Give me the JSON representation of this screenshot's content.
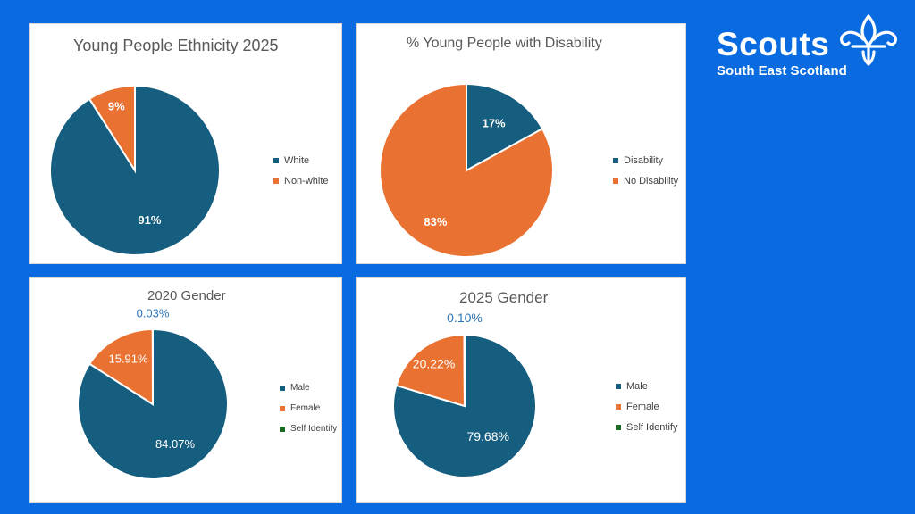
{
  "brand": {
    "name": "Scouts",
    "region": "South East Scotland",
    "icon": "fleur-de-lis-icon",
    "background": "#0a6be0"
  },
  "colors": {
    "blue": "#165e7f",
    "orange": "#e97132",
    "green": "#196b24",
    "outside_label": "#2e75b6"
  },
  "chart_data": [
    {
      "type": "pie",
      "title": "Young People Ethnicity 2025",
      "categories": [
        "White",
        "Non-white"
      ],
      "values": [
        91,
        9
      ],
      "data_labels": [
        "91%",
        "9%"
      ],
      "colors": [
        "#165e7f",
        "#e97132"
      ],
      "legend": "right"
    },
    {
      "type": "pie",
      "title": "% Young People with Disability",
      "categories": [
        "Disability",
        "No Disability"
      ],
      "values": [
        17,
        83
      ],
      "data_labels": [
        "17%",
        "83%"
      ],
      "colors": [
        "#165e7f",
        "#e97132"
      ],
      "legend": "right"
    },
    {
      "type": "pie",
      "title": "2020 Gender",
      "categories": [
        "Male",
        "Female",
        "Self Identify"
      ],
      "values": [
        84.07,
        15.91,
        0.03
      ],
      "data_labels": [
        "84.07%",
        "15.91%",
        "0.03%"
      ],
      "colors": [
        "#165e7f",
        "#e97132",
        "#196b24"
      ],
      "legend": "right"
    },
    {
      "type": "pie",
      "title": "2025 Gender",
      "categories": [
        "Male",
        "Female",
        "Self Identify"
      ],
      "values": [
        79.68,
        20.22,
        0.1
      ],
      "data_labels": [
        "79.68%",
        "20.22%",
        "0.10%"
      ],
      "colors": [
        "#165e7f",
        "#e97132",
        "#196b24"
      ],
      "legend": "right"
    }
  ]
}
